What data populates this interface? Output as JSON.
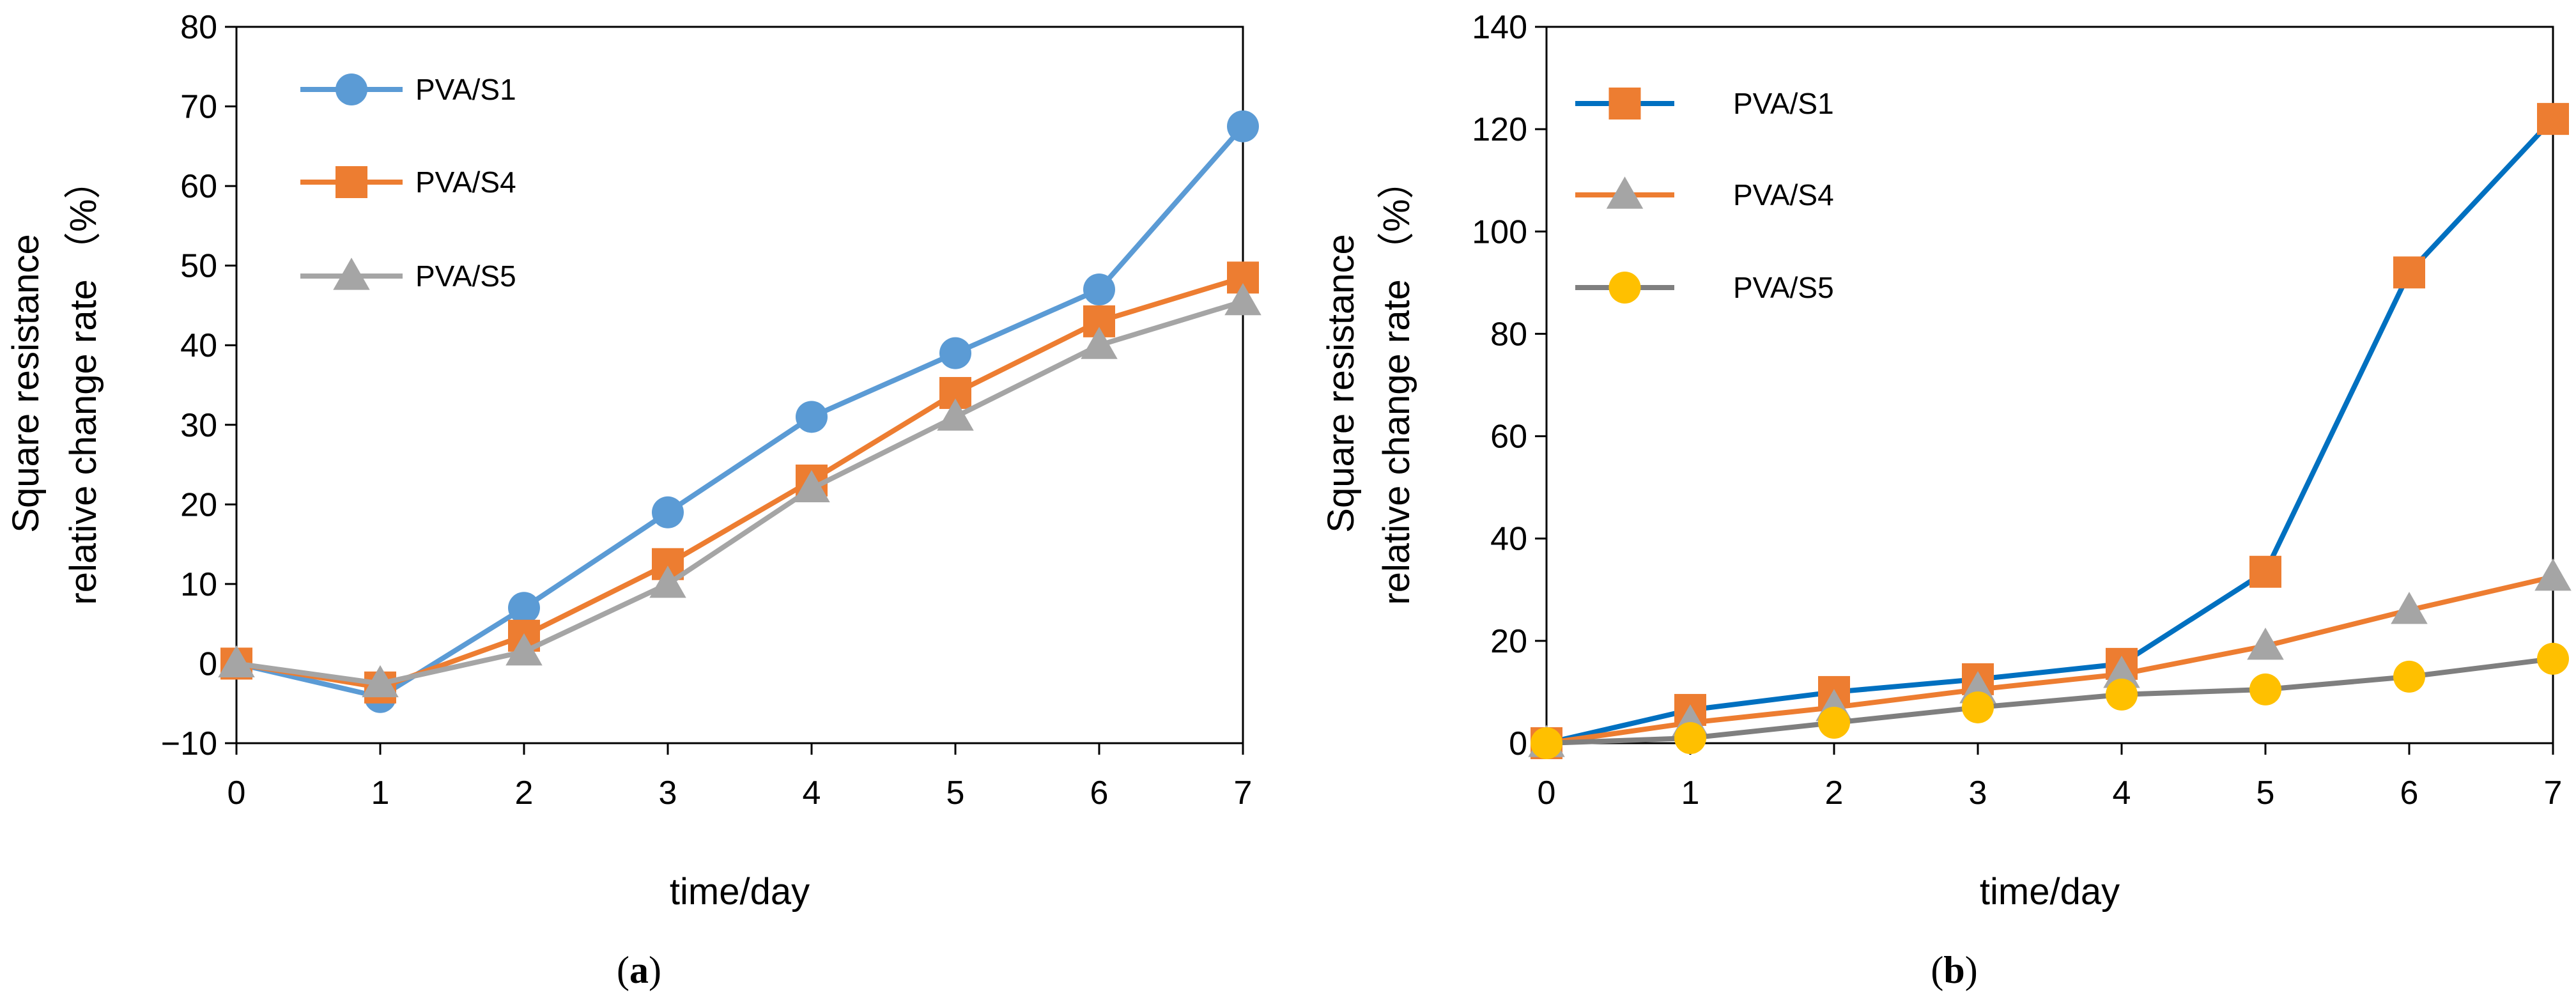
{
  "chart_data": [
    {
      "panel": "(a)",
      "caption_letter": "a",
      "type": "line",
      "title": "",
      "xlabel": "time/day",
      "ylabel_line1": "Square resistance",
      "ylabel_line2": "relative change rate （%）",
      "xlim": [
        0,
        7
      ],
      "ylim": [
        -10,
        80
      ],
      "xticks": [
        0,
        1,
        2,
        3,
        4,
        5,
        6,
        7
      ],
      "yticks": [
        -10,
        0,
        10,
        20,
        30,
        40,
        50,
        60,
        70,
        80
      ],
      "ytick_labels": [
        "−10",
        "0",
        "10",
        "20",
        "30",
        "40",
        "50",
        "60",
        "70",
        "80"
      ],
      "legend_position": "top-left",
      "x": [
        0,
        1,
        2,
        3,
        4,
        5,
        6,
        7
      ],
      "series": [
        {
          "name": "PVA/S1",
          "color": "#5b9bd5",
          "marker": "circle",
          "values": [
            0,
            -4.2,
            7,
            19,
            31,
            39,
            47,
            67.5
          ]
        },
        {
          "name": "PVA/S4",
          "color": "#ed7d31",
          "marker": "square",
          "values": [
            0,
            -3,
            3.5,
            12.5,
            23,
            34,
            43,
            48.5
          ]
        },
        {
          "name": "PVA/S5",
          "color": "#a5a5a5",
          "marker": "triangle",
          "values": [
            0,
            -2.5,
            1.5,
            10,
            22,
            31,
            40,
            45.5
          ]
        }
      ]
    },
    {
      "panel": "(b)",
      "caption_letter": "b",
      "type": "line",
      "title": "",
      "xlabel": "time/day",
      "ylabel_line1": "Square resistance",
      "ylabel_line2": "relative change rate （%）",
      "xlim": [
        0,
        7
      ],
      "ylim": [
        0,
        140
      ],
      "xticks": [
        0,
        1,
        2,
        3,
        4,
        5,
        6,
        7
      ],
      "yticks": [
        0,
        20,
        40,
        60,
        80,
        100,
        120,
        140
      ],
      "ytick_labels": [
        "0",
        "20",
        "40",
        "60",
        "80",
        "100",
        "120",
        "140"
      ],
      "legend_position": "top-left",
      "x": [
        0,
        1,
        2,
        3,
        4,
        5,
        6,
        7
      ],
      "series": [
        {
          "name": "PVA/S1",
          "color": "#0070c0",
          "marker": "square",
          "marker_color": "#ed7d31",
          "values": [
            0,
            6.5,
            10,
            12.5,
            15.5,
            33.5,
            92,
            122
          ]
        },
        {
          "name": "PVA/S4",
          "color": "#ed7d31",
          "marker": "triangle",
          "marker_color": "#a5a5a5",
          "values": [
            0,
            4,
            7,
            10.5,
            13.5,
            19,
            26,
            32.5
          ]
        },
        {
          "name": "PVA/S5",
          "color": "#7f7f7f",
          "marker": "circle",
          "marker_color": "#ffc000",
          "values": [
            0,
            1,
            4,
            7,
            9.5,
            10.5,
            13,
            16.5
          ]
        }
      ]
    }
  ]
}
